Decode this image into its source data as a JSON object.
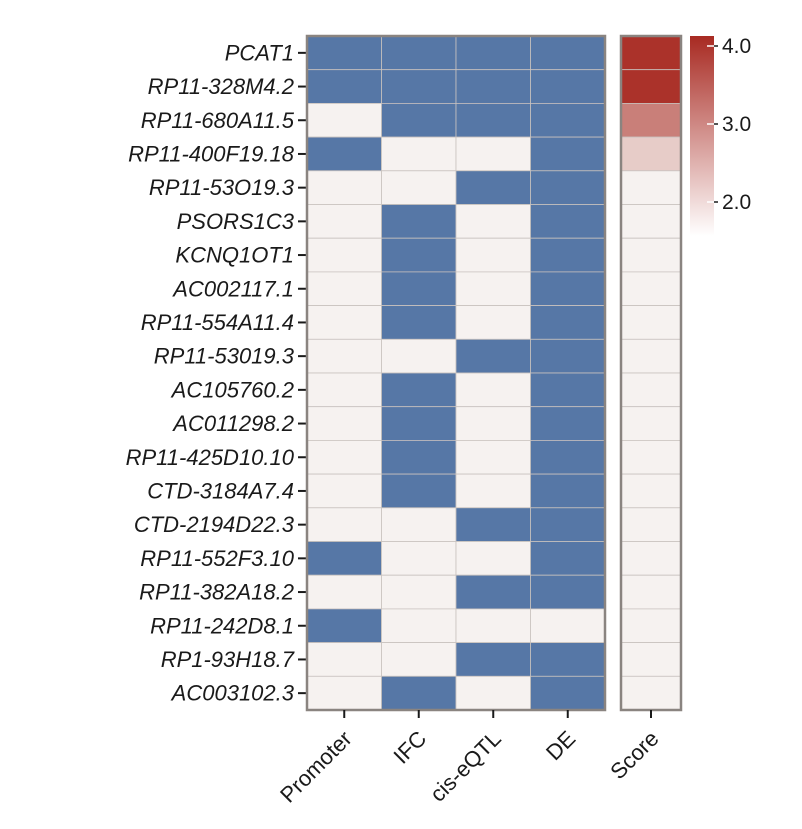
{
  "chart_data": {
    "type": "heatmap",
    "rows": [
      "PCAT1",
      "RP11-328M4.2",
      "RP11-680A11.5",
      "RP11-400F19.18",
      "RP11-53O19.3",
      "PSORS1C3",
      "KCNQ1OT1",
      "AC002117.1",
      "RP11-554A11.4",
      "RP11-53019.3",
      "AC105760.2",
      "AC011298.2",
      "RP11-425D10.10",
      "CTD-3184A7.4",
      "CTD-2194D22.3",
      "RP11-552F3.10",
      "RP11-382A18.2",
      "RP11-242D8.1",
      "RP1-93H18.7",
      "AC003102.3"
    ],
    "columns": [
      "Promoter",
      "IFC",
      "cis-eQTL",
      "DE"
    ],
    "values": [
      [
        1,
        1,
        1,
        1
      ],
      [
        1,
        1,
        1,
        1
      ],
      [
        0,
        1,
        1,
        1
      ],
      [
        1,
        0,
        0,
        1
      ],
      [
        0,
        0,
        1,
        1
      ],
      [
        0,
        1,
        0,
        1
      ],
      [
        0,
        1,
        0,
        1
      ],
      [
        0,
        1,
        0,
        1
      ],
      [
        0,
        1,
        0,
        1
      ],
      [
        0,
        0,
        1,
        1
      ],
      [
        0,
        1,
        0,
        1
      ],
      [
        0,
        1,
        0,
        1
      ],
      [
        0,
        1,
        0,
        1
      ],
      [
        0,
        1,
        0,
        1
      ],
      [
        0,
        0,
        1,
        1
      ],
      [
        1,
        0,
        0,
        1
      ],
      [
        0,
        0,
        1,
        1
      ],
      [
        1,
        0,
        0,
        0
      ],
      [
        0,
        0,
        1,
        1
      ],
      [
        0,
        1,
        0,
        1
      ]
    ],
    "score_label": "Score",
    "score": [
      4.0,
      4.0,
      3.0,
      2.0,
      1.0,
      1.0,
      1.0,
      1.0,
      1.0,
      1.0,
      1.0,
      1.0,
      1.0,
      1.0,
      1.0,
      1.0,
      1.0,
      1.0,
      1.0,
      1.0
    ],
    "legend": {
      "ticks": [
        "4.0",
        "3.0",
        "2.0"
      ],
      "tick_values": [
        4.0,
        3.0,
        2.0
      ],
      "range": [
        1.5,
        4.1
      ]
    },
    "colors": {
      "present": "#5677a6",
      "absent": "#f6f2f0",
      "score_high": "#a82a22",
      "score_low": "#f6f2f0",
      "grid": "#c9c2bf",
      "frame": "#8a8480"
    }
  }
}
